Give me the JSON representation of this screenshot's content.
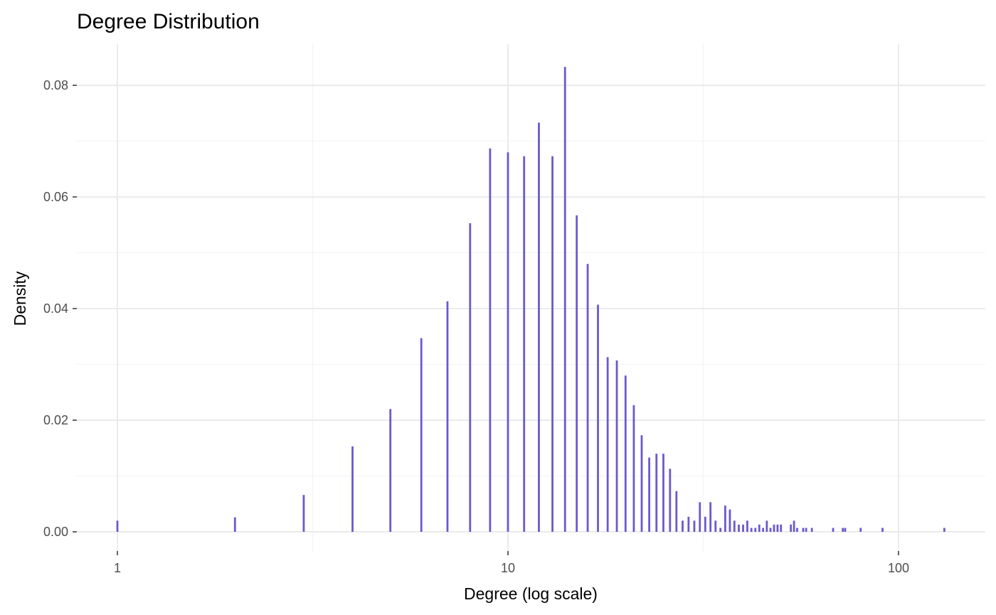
{
  "chart_data": {
    "type": "bar",
    "title": "Degree Distribution",
    "xlabel": "Degree (log scale)",
    "ylabel": "Density",
    "x_scale": "log10",
    "xlim": [
      1,
      130
    ],
    "ylim": [
      0,
      0.085
    ],
    "x_ticks": [
      {
        "value": 1,
        "label": "1"
      },
      {
        "value": 10,
        "label": "10"
      },
      {
        "value": 100,
        "label": "100"
      }
    ],
    "y_ticks": [
      {
        "value": 0.0,
        "label": "0.00"
      },
      {
        "value": 0.02,
        "label": "0.02"
      },
      {
        "value": 0.04,
        "label": "0.04"
      },
      {
        "value": 0.06,
        "label": "0.06"
      },
      {
        "value": 0.08,
        "label": "0.08"
      }
    ],
    "grid": true,
    "legend": "none",
    "bar_color": "#6a5acd",
    "x": [
      1,
      2,
      3,
      4,
      5,
      6,
      7,
      8,
      9,
      10,
      11,
      12,
      13,
      14,
      15,
      16,
      17,
      18,
      19,
      20,
      21,
      22,
      23,
      24,
      25,
      26,
      27,
      28,
      29,
      30,
      31,
      32,
      33,
      34,
      35,
      36,
      37,
      38,
      39,
      40,
      41,
      42,
      43,
      44,
      45,
      46,
      47,
      48,
      49,
      50,
      53,
      54,
      55,
      57,
      58,
      60,
      68,
      72,
      73,
      80,
      91,
      131
    ],
    "values": [
      0.002,
      0.0026,
      0.0066,
      0.0153,
      0.022,
      0.0347,
      0.0413,
      0.0553,
      0.0687,
      0.068,
      0.0673,
      0.0733,
      0.0673,
      0.0833,
      0.0567,
      0.048,
      0.0407,
      0.0313,
      0.0307,
      0.028,
      0.0227,
      0.0173,
      0.0133,
      0.014,
      0.014,
      0.0113,
      0.0073,
      0.002,
      0.0027,
      0.002,
      0.0053,
      0.0027,
      0.0053,
      0.002,
      0.0007,
      0.0047,
      0.004,
      0.002,
      0.0013,
      0.0013,
      0.002,
      0.0007,
      0.0007,
      0.0013,
      0.0007,
      0.002,
      0.0007,
      0.0013,
      0.0013,
      0.0013,
      0.0013,
      0.002,
      0.0007,
      0.0007,
      0.0007,
      0.0007,
      0.0007,
      0.0007,
      0.0007,
      0.0007,
      0.0007,
      0.0007
    ]
  }
}
